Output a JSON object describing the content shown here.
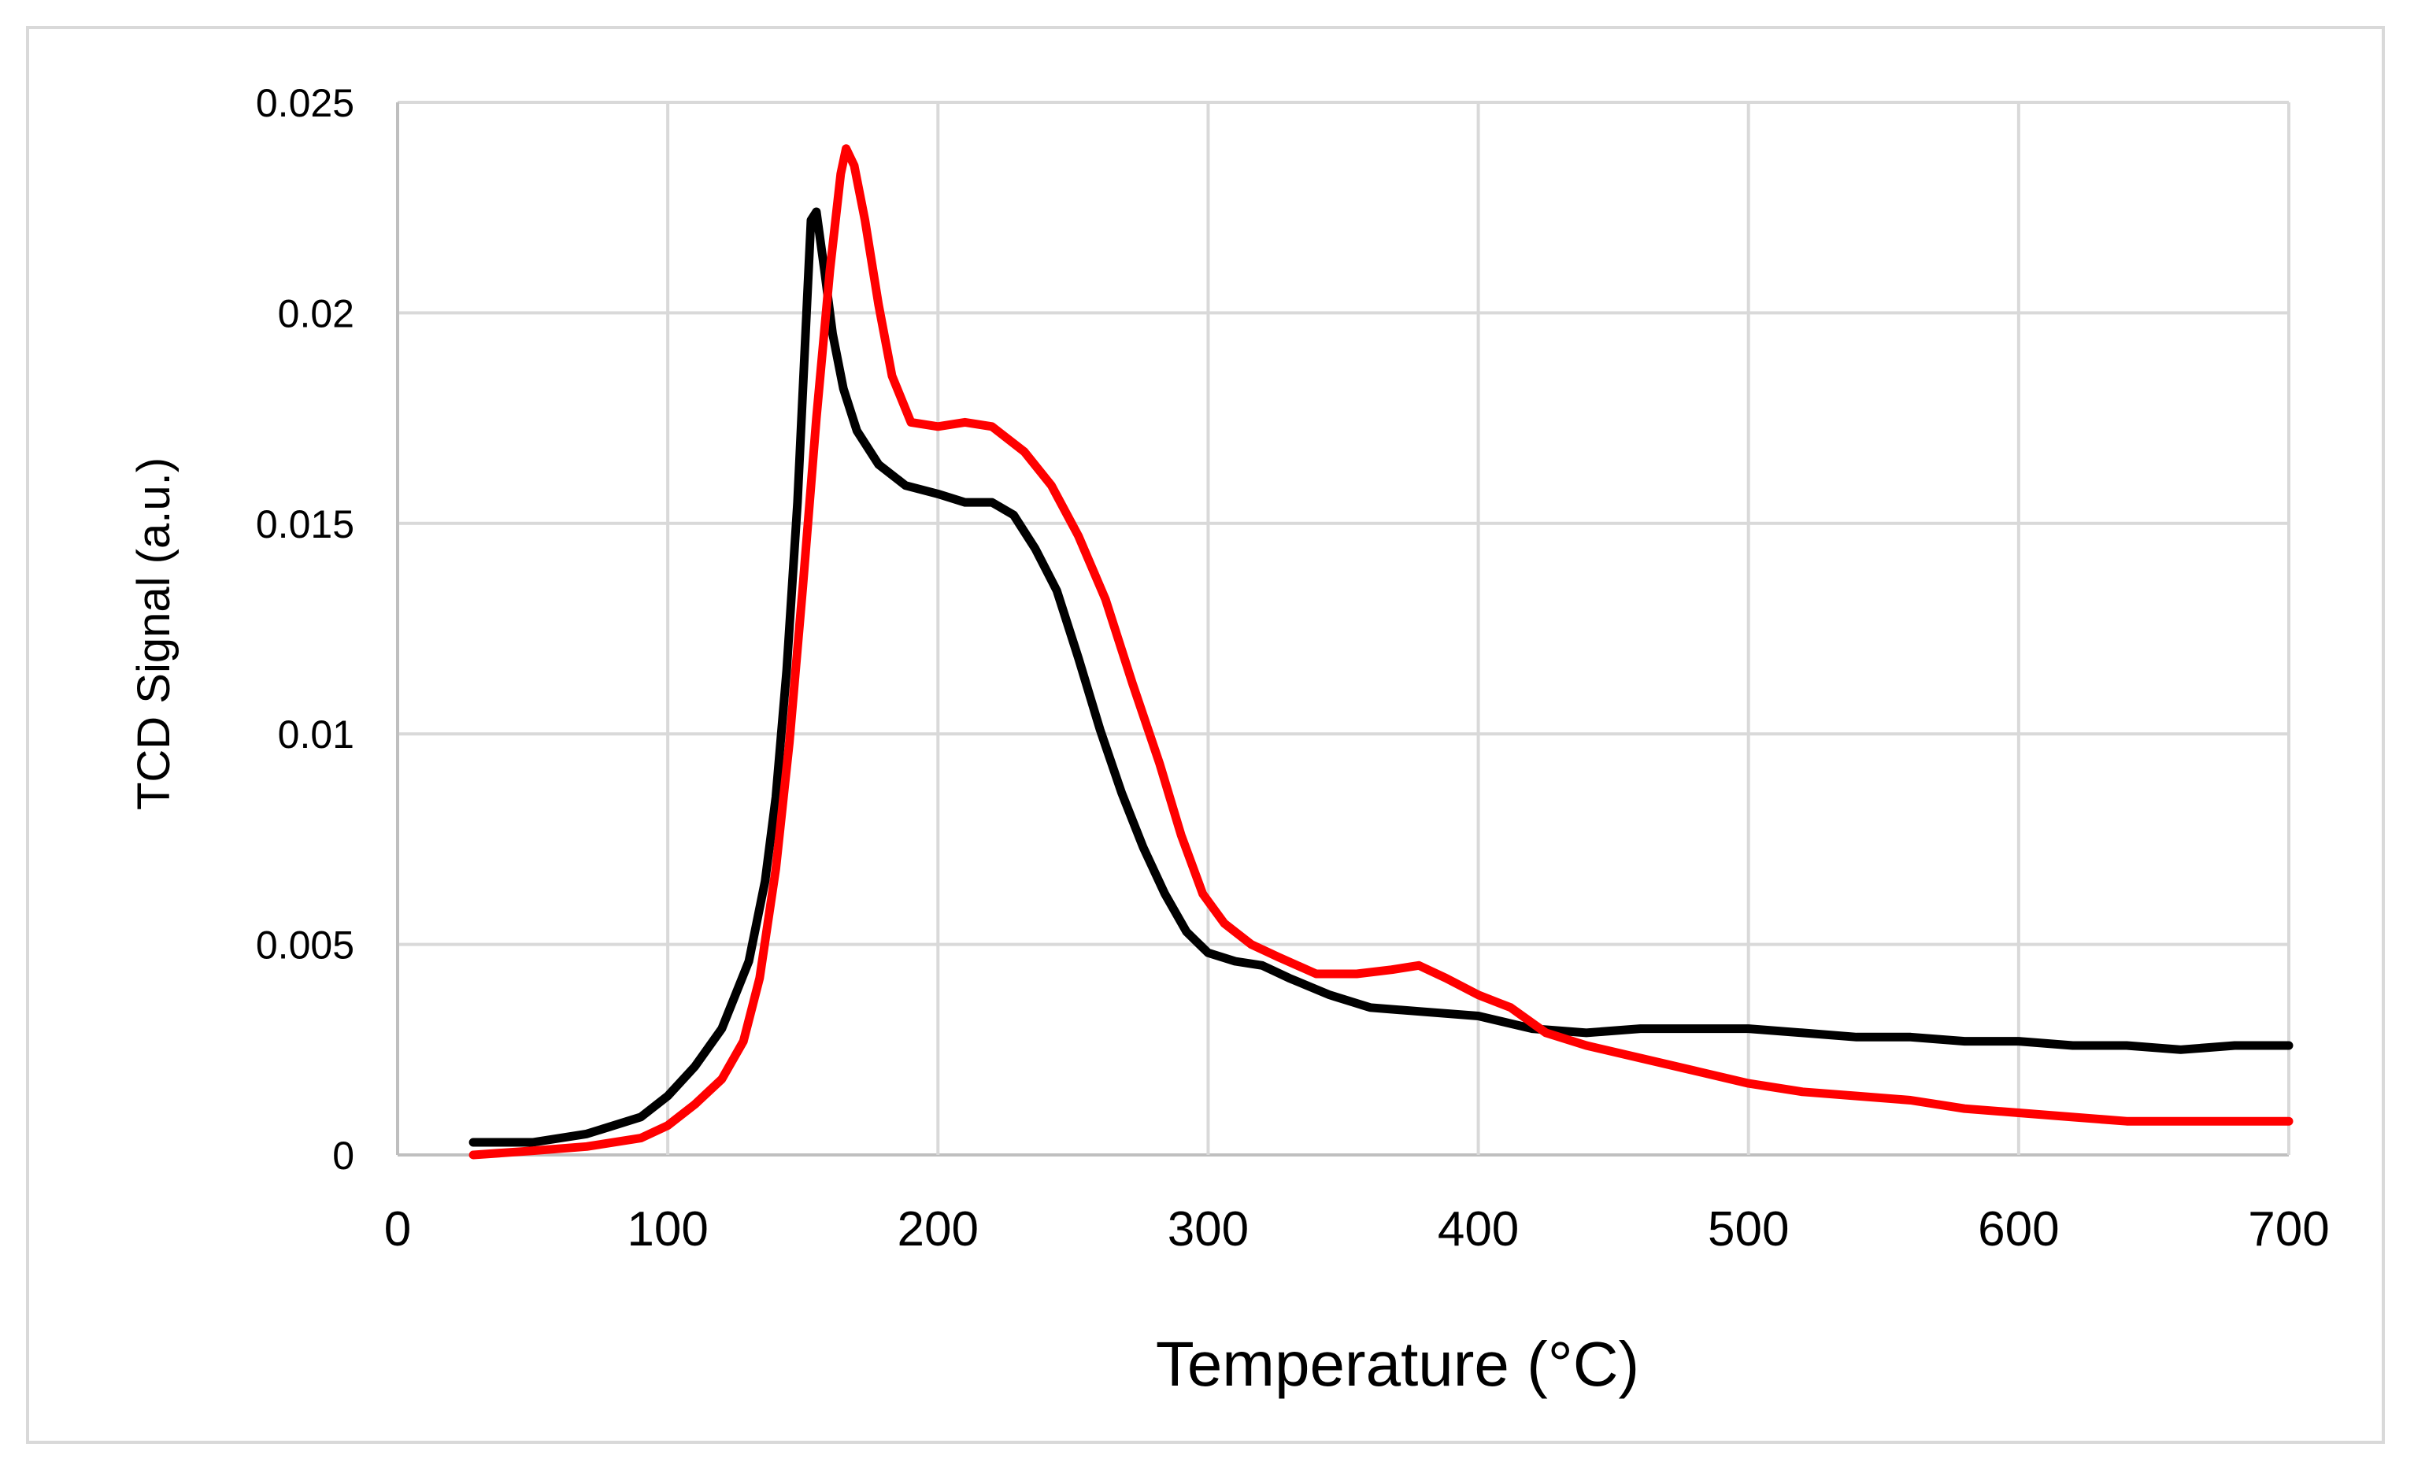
{
  "chart_data": {
    "type": "line",
    "title": "",
    "xlabel": "Temperature (°C)",
    "ylabel": "TCD Signal (a.u.)",
    "xlim": [
      0,
      700
    ],
    "ylim": [
      0,
      0.025
    ],
    "xticks": [
      0,
      100,
      200,
      300,
      400,
      500,
      600,
      700
    ],
    "xtick_labels": [
      "0",
      "100",
      "200",
      "300",
      "400",
      "500",
      "600",
      "700"
    ],
    "yticks": [
      0,
      0.005,
      0.01,
      0.015,
      0.02,
      0.025
    ],
    "ytick_labels": [
      "0",
      "0.005",
      "0.01",
      "0.015",
      "0.02",
      "0.025"
    ],
    "grid": true,
    "legend": "none",
    "series": [
      {
        "name": "black-series",
        "color": "#000000",
        "points": [
          [
            28,
            0.0003
          ],
          [
            50,
            0.0003
          ],
          [
            70,
            0.0005
          ],
          [
            90,
            0.0009
          ],
          [
            100,
            0.0014
          ],
          [
            110,
            0.0021
          ],
          [
            120,
            0.003
          ],
          [
            130,
            0.0046
          ],
          [
            136,
            0.0065
          ],
          [
            140,
            0.0085
          ],
          [
            144,
            0.0115
          ],
          [
            148,
            0.0155
          ],
          [
            151,
            0.0195
          ],
          [
            153,
            0.0222
          ],
          [
            155,
            0.0224
          ],
          [
            158,
            0.021
          ],
          [
            161,
            0.0195
          ],
          [
            165,
            0.0182
          ],
          [
            170,
            0.0172
          ],
          [
            178,
            0.0164
          ],
          [
            188,
            0.0159
          ],
          [
            200,
            0.0157
          ],
          [
            210,
            0.0155
          ],
          [
            220,
            0.0155
          ],
          [
            228,
            0.0152
          ],
          [
            236,
            0.0144
          ],
          [
            244,
            0.0134
          ],
          [
            252,
            0.0118
          ],
          [
            260,
            0.0101
          ],
          [
            268,
            0.0086
          ],
          [
            276,
            0.0073
          ],
          [
            284,
            0.0062
          ],
          [
            292,
            0.0053
          ],
          [
            300,
            0.0048
          ],
          [
            310,
            0.0046
          ],
          [
            320,
            0.0045
          ],
          [
            330,
            0.0042
          ],
          [
            345,
            0.0038
          ],
          [
            360,
            0.0035
          ],
          [
            380,
            0.0034
          ],
          [
            400,
            0.0033
          ],
          [
            420,
            0.003
          ],
          [
            440,
            0.0029
          ],
          [
            460,
            0.003
          ],
          [
            480,
            0.003
          ],
          [
            500,
            0.003
          ],
          [
            520,
            0.0029
          ],
          [
            540,
            0.0028
          ],
          [
            560,
            0.0028
          ],
          [
            580,
            0.0027
          ],
          [
            600,
            0.0027
          ],
          [
            620,
            0.0026
          ],
          [
            640,
            0.0026
          ],
          [
            660,
            0.0025
          ],
          [
            680,
            0.0026
          ],
          [
            700,
            0.0026
          ]
        ]
      },
      {
        "name": "red-series",
        "color": "#ff0000",
        "points": [
          [
            28,
            0.0
          ],
          [
            50,
            0.0001
          ],
          [
            70,
            0.0002
          ],
          [
            90,
            0.0004
          ],
          [
            100,
            0.0007
          ],
          [
            110,
            0.0012
          ],
          [
            120,
            0.0018
          ],
          [
            128,
            0.0027
          ],
          [
            134,
            0.0042
          ],
          [
            140,
            0.0068
          ],
          [
            145,
            0.0098
          ],
          [
            150,
            0.0135
          ],
          [
            155,
            0.0175
          ],
          [
            160,
            0.021
          ],
          [
            164,
            0.0233
          ],
          [
            166,
            0.0239
          ],
          [
            169,
            0.0235
          ],
          [
            173,
            0.0222
          ],
          [
            178,
            0.0202
          ],
          [
            183,
            0.0185
          ],
          [
            190,
            0.0174
          ],
          [
            200,
            0.0173
          ],
          [
            210,
            0.0174
          ],
          [
            220,
            0.0173
          ],
          [
            232,
            0.0167
          ],
          [
            242,
            0.0159
          ],
          [
            252,
            0.0147
          ],
          [
            262,
            0.0132
          ],
          [
            272,
            0.0112
          ],
          [
            282,
            0.0093
          ],
          [
            290,
            0.0076
          ],
          [
            298,
            0.0062
          ],
          [
            306,
            0.0055
          ],
          [
            316,
            0.005
          ],
          [
            326,
            0.0047
          ],
          [
            340,
            0.0043
          ],
          [
            355,
            0.0043
          ],
          [
            368,
            0.0044
          ],
          [
            378,
            0.0045
          ],
          [
            388,
            0.0042
          ],
          [
            400,
            0.0038
          ],
          [
            412,
            0.0035
          ],
          [
            425,
            0.0029
          ],
          [
            440,
            0.0026
          ],
          [
            460,
            0.0023
          ],
          [
            480,
            0.002
          ],
          [
            500,
            0.0017
          ],
          [
            520,
            0.0015
          ],
          [
            540,
            0.0014
          ],
          [
            560,
            0.0013
          ],
          [
            580,
            0.0011
          ],
          [
            600,
            0.001
          ],
          [
            620,
            0.0009
          ],
          [
            640,
            0.0008
          ],
          [
            660,
            0.0008
          ],
          [
            680,
            0.0008
          ],
          [
            700,
            0.0008
          ]
        ]
      }
    ]
  }
}
